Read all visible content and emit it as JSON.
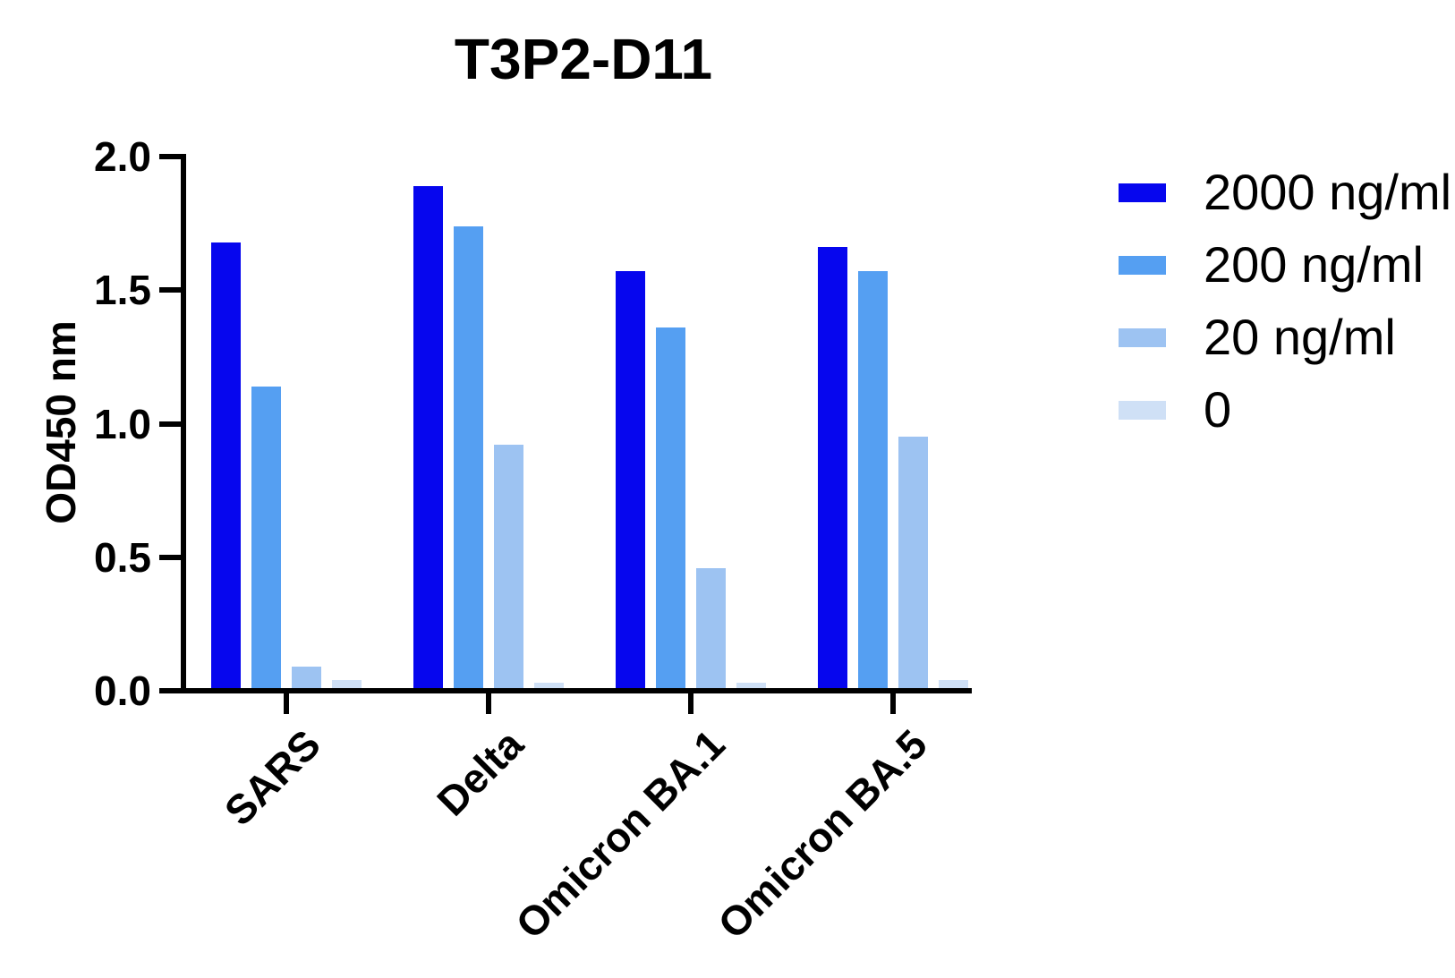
{
  "chart_data": {
    "type": "bar",
    "title": "T3P2-D11",
    "xlabel": "",
    "ylabel": "OD450 nm",
    "ylim": [
      0.0,
      2.0
    ],
    "yticks": [
      0.0,
      0.5,
      1.0,
      1.5,
      2.0
    ],
    "ytick_labels": [
      "0.0",
      "0.5",
      "1.0",
      "1.5",
      "2.0"
    ],
    "grid": false,
    "legend_position": "right",
    "categories": [
      "SARS",
      "Delta",
      "Omicron BA.1",
      "Omicron BA.5"
    ],
    "series": [
      {
        "name": "2000 ng/ml",
        "color": "#0606ee",
        "values": [
          1.67,
          1.88,
          1.56,
          1.65
        ]
      },
      {
        "name": "200 ng/ml",
        "color": "#559ff2",
        "values": [
          1.13,
          1.73,
          1.35,
          1.56
        ]
      },
      {
        "name": "20 ng/ml",
        "color": "#9dc3f2",
        "values": [
          0.08,
          0.91,
          0.45,
          0.94
        ]
      },
      {
        "name": "0",
        "color": "#cfe0f6",
        "values": [
          0.03,
          0.02,
          0.02,
          0.03
        ]
      }
    ]
  },
  "colors": {
    "axis": "#000000",
    "background": "#ffffff",
    "text": "#000000"
  }
}
